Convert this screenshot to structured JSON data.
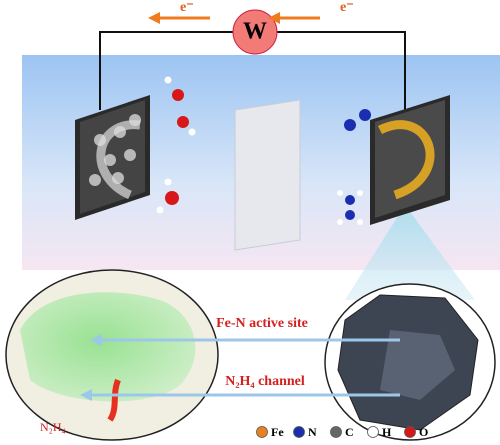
{
  "electron_flow": {
    "left": "e⁻",
    "right": "e⁻"
  },
  "load": "W",
  "callouts": [
    "Fe-N active site",
    "N₂H₄ channel"
  ],
  "inlet": "N₂H₄",
  "legend": [
    {
      "label": "Fe",
      "color": "#e8821e"
    },
    {
      "label": "N",
      "color": "#1a2fb0"
    },
    {
      "label": "C",
      "color": "#666666"
    },
    {
      "label": "H",
      "color": "#ffffff"
    },
    {
      "label": "O",
      "color": "#d81818"
    }
  ]
}
